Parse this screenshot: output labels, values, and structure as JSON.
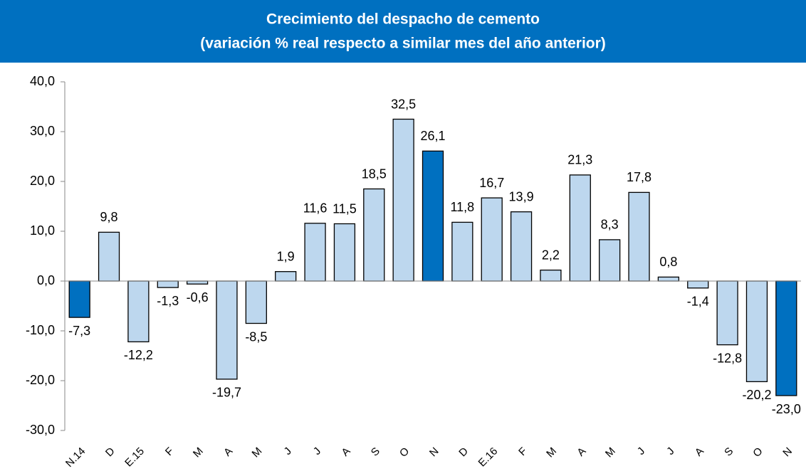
{
  "chart_data": {
    "type": "bar",
    "title": "Crecimiento del despacho de cemento",
    "subtitle": "(variación % real respecto a similar mes del año anterior)",
    "categories": [
      "N.14",
      "D",
      "E.15",
      "F",
      "M",
      "A",
      "M",
      "J",
      "J",
      "A",
      "S",
      "O",
      "N",
      "D",
      "E.16",
      "F",
      "M",
      "A",
      "M",
      "J",
      "J",
      "A",
      "S",
      "O",
      "N"
    ],
    "values": [
      -7.3,
      9.8,
      -12.2,
      -1.3,
      -0.6,
      -19.7,
      -8.5,
      1.9,
      11.6,
      11.5,
      18.5,
      32.5,
      26.1,
      11.8,
      16.7,
      13.9,
      2.2,
      21.3,
      8.3,
      17.8,
      0.8,
      -1.4,
      -12.8,
      -20.2,
      -23.0
    ],
    "value_labels": [
      "-7,3",
      "9,8",
      "-12,2",
      "-1,3",
      "-0,6",
      "-19,7",
      "-8,5",
      "1,9",
      "11,6",
      "11,5",
      "18,5",
      "32,5",
      "26,1",
      "11,8",
      "16,7",
      "13,9",
      "2,2",
      "21,3",
      "8,3",
      "17,8",
      "0,8",
      "-1,4",
      "-12,8",
      "-20,2",
      "-23,0"
    ],
    "colors": [
      "#0070c0",
      "#bdd7ee",
      "#bdd7ee",
      "#bdd7ee",
      "#bdd7ee",
      "#bdd7ee",
      "#bdd7ee",
      "#bdd7ee",
      "#bdd7ee",
      "#bdd7ee",
      "#bdd7ee",
      "#bdd7ee",
      "#0070c0",
      "#bdd7ee",
      "#bdd7ee",
      "#bdd7ee",
      "#bdd7ee",
      "#bdd7ee",
      "#bdd7ee",
      "#bdd7ee",
      "#bdd7ee",
      "#bdd7ee",
      "#bdd7ee",
      "#bdd7ee",
      "#0070c0"
    ],
    "ylim": [
      -30,
      40
    ],
    "yticks": [
      {
        "value": -30,
        "label": "-30,0"
      },
      {
        "value": -20,
        "label": "-20,0"
      },
      {
        "value": -10,
        "label": "-10,0"
      },
      {
        "value": 0,
        "label": "0,0"
      },
      {
        "value": 10,
        "label": "10,0"
      },
      {
        "value": 20,
        "label": "20,0"
      },
      {
        "value": 30,
        "label": "30,0"
      },
      {
        "value": 40,
        "label": "40,0"
      }
    ],
    "grid": false
  }
}
